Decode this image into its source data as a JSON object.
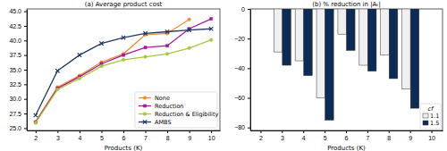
{
  "chart_data": [
    {
      "type": "line",
      "title": "(a) Average product cost",
      "x_label": "Products (K)",
      "x": [
        2,
        3,
        4,
        5,
        6,
        7,
        8,
        9,
        10
      ],
      "series": [
        {
          "name": "None",
          "color": "#f28a2e",
          "marker": "circle",
          "values": [
            26.1,
            32.0,
            34.0,
            36.3,
            37.7,
            41.0,
            41.2,
            43.6,
            null
          ]
        },
        {
          "name": "Reduction",
          "color": "#a5189f",
          "marker": "square",
          "values": [
            26.0,
            31.8,
            33.8,
            36.0,
            37.5,
            38.8,
            39.1,
            42.0,
            43.7
          ]
        },
        {
          "name": "Reduction & Eligibility",
          "color": "#a6c93a",
          "marker": "circle",
          "values": [
            25.9,
            31.6,
            33.5,
            35.6,
            36.7,
            37.2,
            37.7,
            38.7,
            40.1
          ]
        },
        {
          "name": "AMBS",
          "color": "#1f3968",
          "marker": "x",
          "values": [
            27.2,
            34.8,
            37.5,
            39.5,
            40.5,
            41.2,
            41.5,
            41.8,
            42.0
          ]
        }
      ],
      "xlim": [
        1.6,
        10.4
      ],
      "xticks": [
        2,
        3,
        4,
        5,
        6,
        7,
        8,
        9,
        10
      ],
      "ylim": [
        24.6,
        45.4
      ],
      "yticks": [
        {
          "value": 25,
          "label": "25.0"
        },
        27.5,
        {
          "value": 30,
          "label": "30.0"
        },
        32.5,
        {
          "value": 35,
          "label": "35.0"
        },
        37.5,
        {
          "value": 40,
          "label": "40.0"
        },
        42.5,
        {
          "value": 45,
          "label": "45.0"
        }
      ],
      "legend": "lower right",
      "grid": false
    },
    {
      "type": "bar",
      "title": "(b) % reduction in |Aₜ|",
      "x_label": "Products (K)",
      "legend_title": "cf",
      "categories": [
        "2",
        "3",
        "4",
        "5",
        "6",
        "7",
        "8",
        "9",
        "10"
      ],
      "series": [
        {
          "name": "1.1",
          "color": "#f0f0f0",
          "values": [
            null,
            -29,
            -35,
            -60,
            -17,
            -38,
            -31,
            -54,
            null
          ]
        },
        {
          "name": "1.5",
          "color": "#0c2b55",
          "values": [
            null,
            -38,
            -45,
            -75,
            -28,
            -42,
            -47,
            -67,
            null
          ]
        }
      ],
      "ylim": [
        -82,
        0
      ],
      "yticks": [
        {
          "value": -80,
          "label": "−80"
        },
        {
          "value": -60,
          "label": "−60"
        },
        {
          "value": -40,
          "label": "−40"
        },
        {
          "value": -20,
          "label": "−20"
        },
        0
      ],
      "legend": "lower right",
      "grid": false
    }
  ]
}
